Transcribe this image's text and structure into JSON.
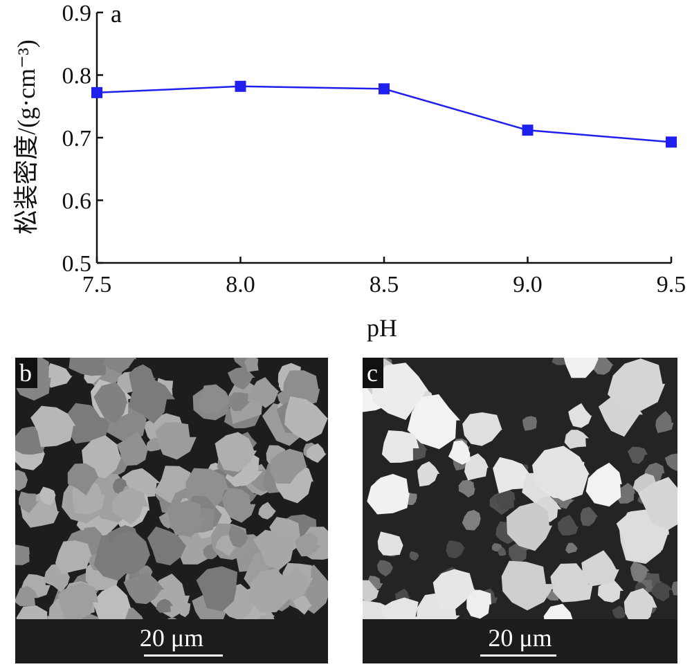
{
  "chart_data": {
    "type": "line",
    "panel_label": "a",
    "x": [
      7.5,
      8.0,
      8.5,
      9.0,
      9.5
    ],
    "series": [
      {
        "values": [
          0.772,
          0.782,
          0.778,
          0.712,
          0.693
        ],
        "color": "#2020ee",
        "marker": "square"
      }
    ],
    "xlabel": "pH",
    "ylabel": "松装密度/(g·cm⁻³)",
    "xlim": [
      7.5,
      9.5
    ],
    "ylim": [
      0.5,
      0.9
    ],
    "xticks": [
      "7.5",
      "8.0",
      "8.5",
      "9.0",
      "9.5"
    ],
    "yticks": [
      "0.5",
      "0.6",
      "0.7",
      "0.8",
      "0.9"
    ],
    "grid": false
  },
  "images": [
    {
      "label": "b",
      "scale_text": "20 μm",
      "appearance": "dense gray porous particles on dark background"
    },
    {
      "label": "c",
      "scale_text": "20 μm",
      "appearance": "bright rounded particles with small fragments on dark background"
    }
  ]
}
